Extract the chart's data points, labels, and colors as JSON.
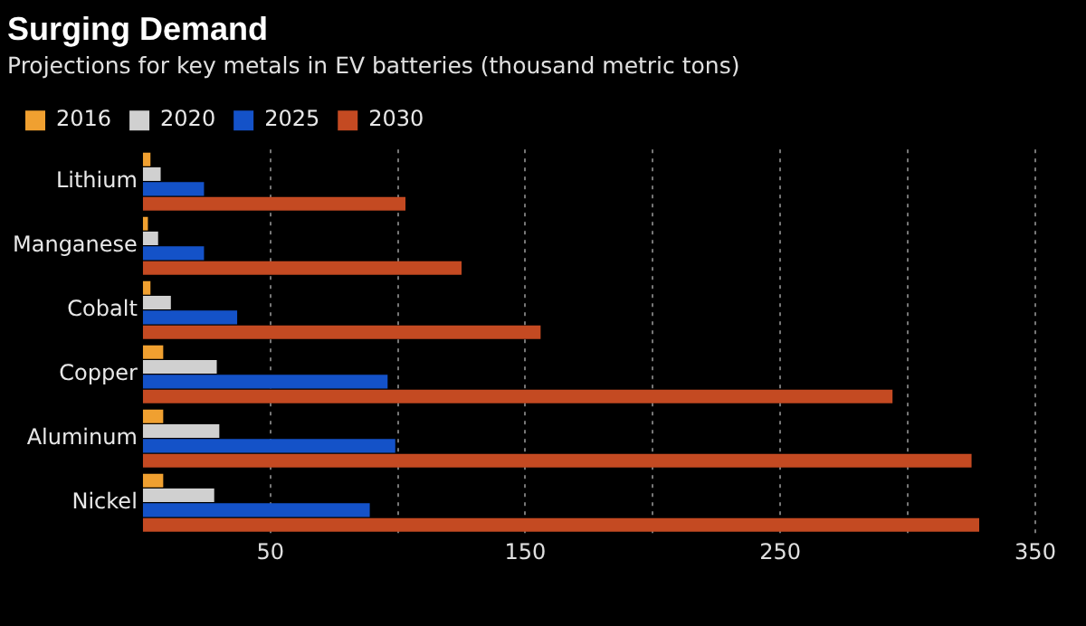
{
  "chart_data": {
    "type": "bar",
    "orientation": "horizontal",
    "title": "Surging Demand",
    "subtitle": "Projections for key metals in EV batteries (thousand metric tons)",
    "categories": [
      "Lithium",
      "Manganese",
      "Cobalt",
      "Copper",
      "Aluminum",
      "Nickel"
    ],
    "series": [
      {
        "name": "2016",
        "color": "#f0a030",
        "values": [
          3,
          2,
          3,
          8,
          8,
          8
        ]
      },
      {
        "name": "2020",
        "color": "#d0d0d0",
        "values": [
          7,
          6,
          11,
          29,
          30,
          28
        ]
      },
      {
        "name": "2025",
        "color": "#1452c8",
        "values": [
          24,
          24,
          37,
          96,
          99,
          89
        ]
      },
      {
        "name": "2030",
        "color": "#c44a22",
        "values": [
          103,
          125,
          156,
          294,
          325,
          328
        ]
      }
    ],
    "xlim": [
      0,
      350
    ],
    "xticks": [
      50,
      {
        "value": 100,
        "label": null
      },
      150,
      {
        "value": 200,
        "label": null
      },
      250,
      {
        "value": 300,
        "label": null
      },
      350
    ],
    "grid": "x",
    "legend": "top left"
  }
}
